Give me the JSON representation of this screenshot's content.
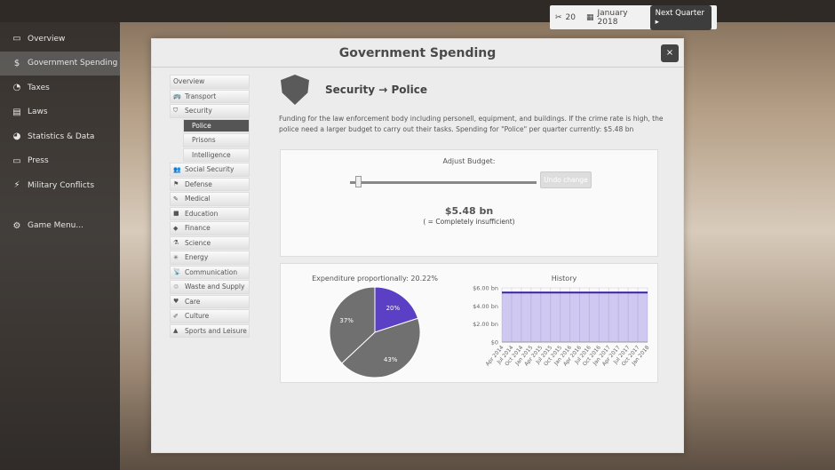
{
  "topbar": {
    "tools_count": "20",
    "date": "January 2018",
    "next_quarter": "Next Quarter ▸"
  },
  "sidebar": {
    "items": [
      {
        "label": "Overview",
        "icon": "overview-icon",
        "glyph": "▭"
      },
      {
        "label": "Government Spending",
        "icon": "dollar-icon",
        "glyph": "$"
      },
      {
        "label": "Taxes",
        "icon": "taxes-icon",
        "glyph": "◔"
      },
      {
        "label": "Laws",
        "icon": "laws-icon",
        "glyph": "▤"
      },
      {
        "label": "Statistics & Data",
        "icon": "pie-icon",
        "glyph": "◕"
      },
      {
        "label": "Press",
        "icon": "press-icon",
        "glyph": "▭"
      },
      {
        "label": "Military Conflicts",
        "icon": "lightning-icon",
        "glyph": "⚡"
      }
    ],
    "game_menu": "Game Menu..."
  },
  "modal": {
    "title": "Government Spending",
    "close": "×",
    "nav": [
      {
        "label": "Overview",
        "glyph": ""
      },
      {
        "label": "Transport",
        "glyph": "🚌"
      },
      {
        "label": "Security",
        "glyph": "⛉"
      },
      {
        "label": "Police",
        "sub": true,
        "selected": true
      },
      {
        "label": "Prisons",
        "sub": true
      },
      {
        "label": "Intelligence",
        "sub": true
      },
      {
        "label": "Social Security",
        "glyph": "👥"
      },
      {
        "label": "Defense",
        "glyph": "⚑"
      },
      {
        "label": "Medical",
        "glyph": "✎"
      },
      {
        "label": "Education",
        "glyph": "■"
      },
      {
        "label": "Finance",
        "glyph": "◆"
      },
      {
        "label": "Science",
        "glyph": "⚗"
      },
      {
        "label": "Energy",
        "glyph": "✳"
      },
      {
        "label": "Communication",
        "glyph": "📡"
      },
      {
        "label": "Waste and Supply",
        "glyph": "♲"
      },
      {
        "label": "Care",
        "glyph": "♥"
      },
      {
        "label": "Culture",
        "glyph": "✐"
      },
      {
        "label": "Sports and Leisure",
        "glyph": "▲"
      }
    ],
    "heading": "Security → Police",
    "description": "Funding for the law enforcement body including personell, equipment, and buildings. If the crime rate is high, the police need a larger budget to carry out their tasks. Spending for \"Police\" per quarter currently:  $5.48 bn",
    "adjust_label": "Adjust Budget:",
    "undo": "Undo change",
    "amount": "$5.48 bn",
    "rating": "( = Completely insufficient)",
    "slider_fraction": 0.03
  },
  "chart_data": [
    {
      "type": "pie",
      "title": "Expenditure proportionally: 20.22%",
      "values": [
        20,
        43,
        37
      ],
      "labels": [
        "20%",
        "43%",
        "37%"
      ],
      "colors": [
        "#5b3fc4",
        "#707070",
        "#707070"
      ]
    },
    {
      "type": "area",
      "title": "History",
      "categories": [
        "Apr 2014",
        "Jul 2014",
        "Oct 2014",
        "Jan 2015",
        "Apr 2015",
        "Jul 2015",
        "Oct 2015",
        "Jan 2016",
        "Apr 2016",
        "Jul 2016",
        "Oct 2016",
        "Jan 2017",
        "Apr 2017",
        "Jul 2017",
        "Oct 2017",
        "Jan 2018"
      ],
      "values": [
        5.48,
        5.48,
        5.48,
        5.48,
        5.48,
        5.48,
        5.48,
        5.48,
        5.48,
        5.48,
        5.48,
        5.48,
        5.48,
        5.48,
        5.48,
        5.48
      ],
      "ylim": [
        0,
        6
      ],
      "yticks": [
        "$0",
        "$2.00 bn",
        "$4.00 bn",
        "$6.00 bn"
      ],
      "color": "#3a1fa8",
      "fill": "#cfc8f0",
      "grid": true
    }
  ]
}
